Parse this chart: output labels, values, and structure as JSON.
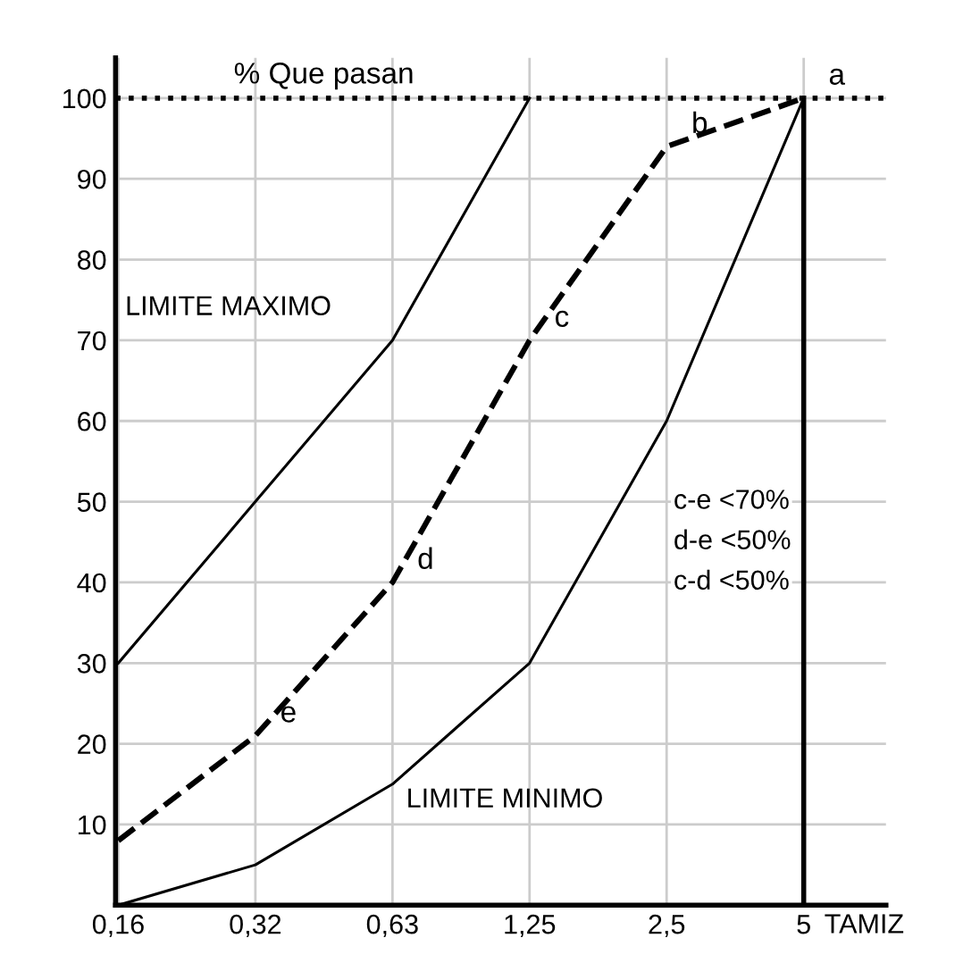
{
  "chart_data": {
    "type": "line",
    "ylabel": "% Que pasan",
    "xlabel": "TAMIZ",
    "categories": [
      "0,16",
      "0,32",
      "0,63",
      "1,25",
      "2,5",
      "5"
    ],
    "series": [
      {
        "name": "LIMITE MAXIMO",
        "color": "#000000",
        "values": [
          30,
          50,
          70,
          100,
          null,
          null
        ],
        "line_style": "solid"
      },
      {
        "name": "LIMITE MINIMO",
        "color": "#000000",
        "values": [
          0,
          5,
          15,
          30,
          60,
          100
        ],
        "line_style": "solid"
      },
      {
        "color": "#000000",
        "values": [
          8,
          21,
          40,
          70,
          94,
          100
        ],
        "line_style": "dashed"
      }
    ],
    "ylim": [
      0,
      105
    ],
    "yticks": [
      10,
      20,
      30,
      40,
      50,
      60,
      70,
      80,
      90,
      100
    ],
    "grid": true,
    "marker": "none",
    "ref_lines": [
      {
        "axis": "y",
        "value": 100,
        "line_style": "dotted"
      },
      {
        "axis": "x",
        "value": "5"
      }
    ],
    "annotations": [
      {
        "text": "a",
        "x": "5",
        "y": 100
      },
      {
        "text": "b",
        "x": "2,5",
        "y": 94
      },
      {
        "text": "c",
        "x": "1,25",
        "y": 70
      },
      {
        "text": "d",
        "x": "0,63",
        "y": 40
      },
      {
        "text": "e",
        "x": "0,32",
        "y": 21
      },
      "c-e <70%",
      "d-e <50%",
      "c-d <50%"
    ]
  }
}
